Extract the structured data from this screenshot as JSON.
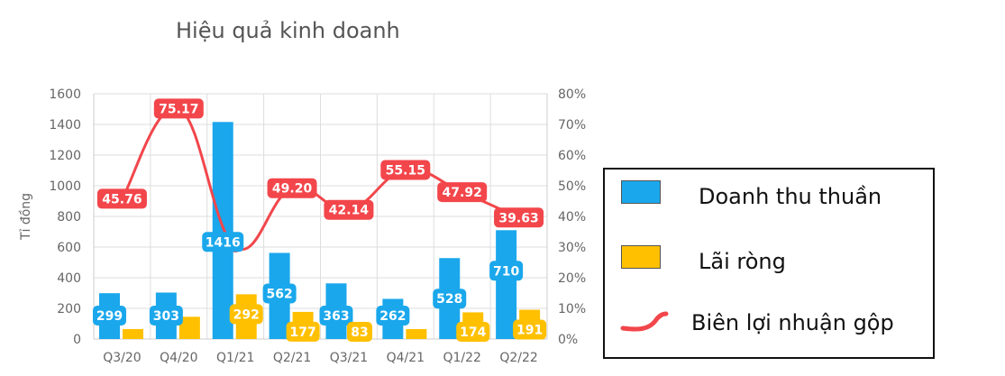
{
  "chart_data": {
    "type": "bar",
    "title": "Hiệu quả kinh doanh",
    "ylabel": "Tỉ đồng",
    "ylim": [
      0,
      1600
    ],
    "y2lim": [
      0,
      80
    ],
    "y_ticks": [
      "0",
      "200",
      "400",
      "600",
      "800",
      "1000",
      "1200",
      "1400",
      "1600"
    ],
    "y2_ticks": [
      "0%",
      "10%",
      "20%",
      "30%",
      "40%",
      "50%",
      "60%",
      "70%",
      "80%"
    ],
    "categories": [
      "Q3/20",
      "Q4/20",
      "Q1/21",
      "Q2/21",
      "Q3/21",
      "Q4/21",
      "Q1/22",
      "Q2/22"
    ],
    "series": [
      {
        "name": "Doanh thu thuần",
        "type": "bar",
        "color": "#1aa7ec",
        "values": [
          299,
          303,
          1416,
          562,
          363,
          262,
          528,
          710
        ]
      },
      {
        "name": "Lãi ròng",
        "type": "bar",
        "color": "#ffc000",
        "values": [
          65,
          145,
          292,
          177,
          83,
          65,
          174,
          191
        ],
        "labels": [
          null,
          null,
          "292",
          "177",
          "83",
          null,
          "174",
          "191"
        ]
      },
      {
        "name": "Biên lợi nhuận gộp",
        "type": "line",
        "axis": "right",
        "color": "#f2464b",
        "values": [
          45.76,
          75.17,
          30,
          49.2,
          42.14,
          55.15,
          47.92,
          39.63
        ],
        "labels": [
          "45.76",
          "75.17",
          null,
          "49.20",
          "42.14",
          "55.15",
          "47.92",
          "39.63"
        ]
      }
    ],
    "bar_labels_revenue": [
      "299",
      "303",
      "1416",
      "562",
      "363",
      "262",
      "528",
      "710"
    ],
    "legend_position": "right",
    "grid": true
  },
  "legend": {
    "items": [
      {
        "label": "Doanh thu thuần",
        "color": "#1aa7ec"
      },
      {
        "label": "Lãi ròng",
        "color": "#ffc000"
      },
      {
        "label": "Biên lợi nhuận gộp",
        "color": "#f2464b"
      }
    ]
  }
}
